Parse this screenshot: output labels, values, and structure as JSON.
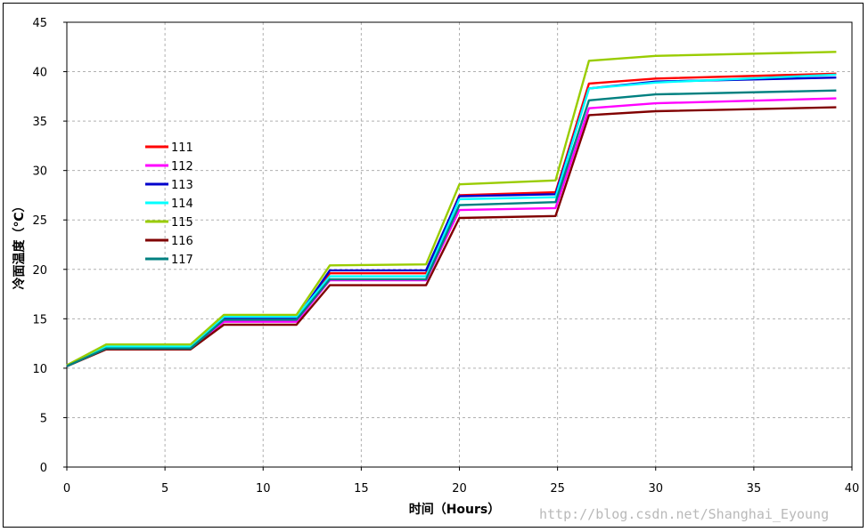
{
  "chart_data": {
    "type": "line",
    "xlabel": "时间（Hours）",
    "ylabel": "冷面温度（℃）",
    "xlim": [
      0,
      40
    ],
    "ylim": [
      0,
      45
    ],
    "xticks": [
      "0",
      "5",
      "10",
      "15",
      "20",
      "25",
      "30",
      "35",
      "40"
    ],
    "yticks": [
      "0",
      "5",
      "10",
      "15",
      "20",
      "25",
      "30",
      "35",
      "40",
      "45"
    ],
    "grid": true,
    "legend_position": "left",
    "x": [
      0,
      2,
      6.3,
      8,
      11.7,
      13.4,
      18.3,
      20,
      24.9,
      26.6,
      30,
      39.2
    ],
    "series": [
      {
        "name": "111",
        "color": "#ff0000",
        "values": [
          10.2,
          12.1,
          12.1,
          15.1,
          15.1,
          19.6,
          19.6,
          27.5,
          27.8,
          38.8,
          39.3,
          39.8
        ]
      },
      {
        "name": "112",
        "color": "#ff00ff",
        "values": [
          10.2,
          12.0,
          12.0,
          14.7,
          14.7,
          18.9,
          18.9,
          26.0,
          26.2,
          36.3,
          36.8,
          37.3
        ]
      },
      {
        "name": "113",
        "color": "#0000cc",
        "values": [
          10.2,
          12.1,
          12.1,
          15.0,
          15.0,
          19.9,
          19.9,
          27.4,
          27.6,
          38.3,
          39.0,
          39.4
        ]
      },
      {
        "name": "114",
        "color": "#00ffff",
        "values": [
          10.2,
          12.2,
          12.2,
          15.2,
          15.2,
          19.3,
          19.3,
          27.1,
          27.3,
          38.3,
          38.9,
          39.7
        ]
      },
      {
        "name": "115",
        "color": "#99cc00",
        "values": [
          10.3,
          12.4,
          12.4,
          15.4,
          15.4,
          20.4,
          20.5,
          28.6,
          29.0,
          41.1,
          41.6,
          42.0
        ]
      },
      {
        "name": "116",
        "color": "#800000",
        "values": [
          10.2,
          11.9,
          11.9,
          14.4,
          14.4,
          18.4,
          18.4,
          25.2,
          25.4,
          35.6,
          36.0,
          36.4
        ]
      },
      {
        "name": "117",
        "color": "#008080",
        "values": [
          10.2,
          12.0,
          12.0,
          14.9,
          14.9,
          19.0,
          19.0,
          26.5,
          26.8,
          37.1,
          37.7,
          38.1
        ]
      }
    ]
  },
  "watermark": "http://blog.csdn.net/Shanghai_Eyoung"
}
